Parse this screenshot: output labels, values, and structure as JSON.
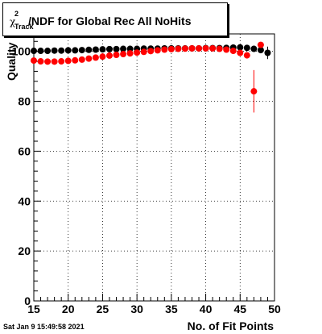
{
  "title": {
    "symbol": "χ",
    "superscript": "2",
    "subscript": "Track",
    "text": "/NDF for Global Rec All NoHits"
  },
  "ylabel": "Quality",
  "xlabel": "No. of Fit Points",
  "datestamp": "Sat Jan  9 15:49:58 2021",
  "chart_data": {
    "type": "scatter",
    "title": "χ2 Track/NDF for Global Rec All NoHits",
    "xlabel": "No. of Fit Points",
    "ylabel": "Quality",
    "xlim": [
      15,
      50
    ],
    "ylim": [
      0,
      107
    ],
    "x_ticks": [
      15,
      20,
      25,
      30,
      35,
      40,
      45,
      50
    ],
    "y_ticks": [
      0,
      20,
      40,
      60,
      80,
      100
    ],
    "grid": true,
    "series": [
      {
        "color": "#000000",
        "x": [
          15,
          16,
          17,
          18,
          19,
          20,
          21,
          22,
          23,
          24,
          25,
          26,
          27,
          28,
          29,
          30,
          31,
          32,
          33,
          34,
          35,
          36,
          37,
          38,
          39,
          40,
          41,
          42,
          43,
          44,
          45,
          46,
          47,
          48,
          49
        ],
        "y": [
          100.2,
          100.2,
          100.2,
          100.3,
          100.3,
          100.4,
          100.4,
          100.5,
          100.6,
          100.7,
          100.8,
          100.9,
          100.9,
          101.0,
          101.0,
          101.0,
          101.1,
          101.1,
          101.1,
          101.2,
          101.2,
          101.2,
          101.2,
          101.2,
          101.2,
          101.3,
          101.3,
          101.3,
          101.4,
          101.5,
          101.6,
          101.4,
          101.0,
          100.5,
          99.4
        ],
        "yerr": [
          0,
          0,
          0,
          0,
          0,
          0,
          0,
          0,
          0,
          0,
          0,
          0,
          0,
          0,
          0,
          0,
          0,
          0,
          0,
          0,
          0,
          0,
          0,
          0,
          0,
          0,
          0,
          0,
          0,
          0,
          0,
          0,
          0,
          0,
          2.5
        ]
      },
      {
        "color": "#ff0000",
        "x": [
          15,
          16,
          17,
          18,
          19,
          20,
          21,
          22,
          23,
          24,
          25,
          26,
          27,
          28,
          29,
          30,
          31,
          32,
          33,
          34,
          35,
          36,
          37,
          38,
          39,
          40,
          41,
          42,
          43,
          44,
          45,
          46,
          47,
          48
        ],
        "y": [
          96.3,
          96.0,
          95.9,
          95.9,
          96.0,
          96.2,
          96.4,
          96.7,
          97.1,
          97.5,
          97.9,
          98.3,
          98.6,
          98.9,
          99.2,
          99.5,
          99.8,
          100.1,
          100.4,
          100.7,
          100.9,
          101.0,
          101.1,
          101.2,
          101.2,
          101.2,
          101.2,
          101.0,
          100.7,
          100.2,
          99.4,
          98.4,
          84.0,
          102.6
        ],
        "yerr": [
          0,
          0,
          0,
          0,
          0,
          0,
          0,
          0,
          0,
          0,
          0,
          0,
          0,
          0,
          0,
          0,
          0,
          0,
          0,
          0,
          0,
          0,
          0,
          0,
          0,
          0,
          0,
          0,
          0,
          0,
          0,
          0,
          8.5,
          0
        ]
      }
    ]
  }
}
